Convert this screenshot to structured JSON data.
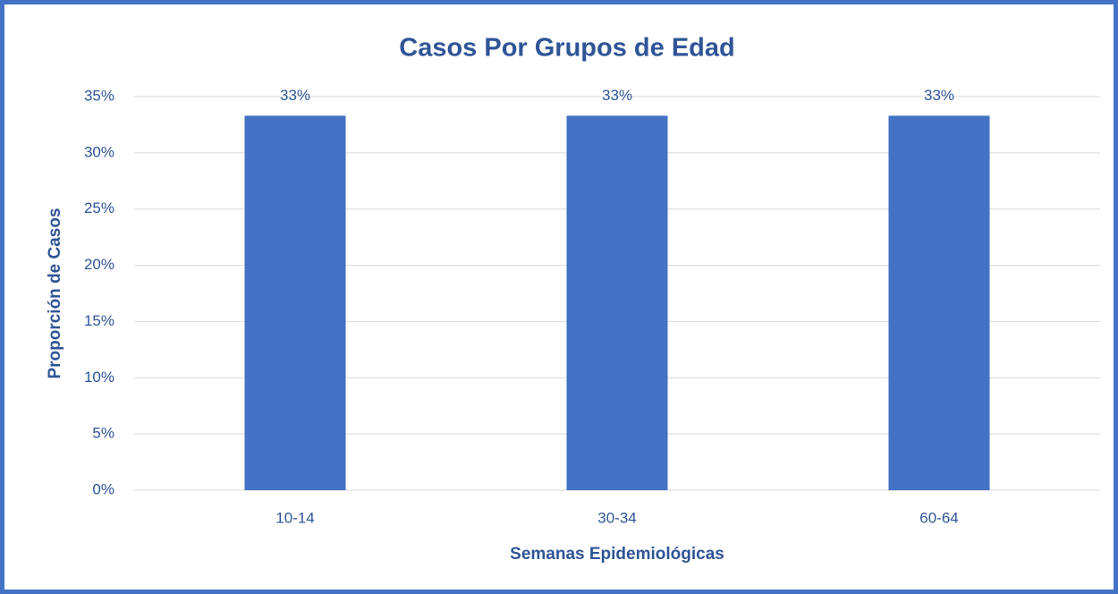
{
  "chart_data": {
    "type": "bar",
    "title": "Casos Por Grupos de Edad",
    "x_label": "Semanas Epidemiológicas",
    "y_label": "Proporción de Casos",
    "categories": [
      "10-14",
      "30-34",
      "60-64"
    ],
    "values": [
      33.3,
      33.3,
      33.3
    ],
    "value_labels": [
      "33%",
      "33%",
      "33%"
    ],
    "color": "#4472c4",
    "ylim": [
      0,
      35
    ],
    "yticks": [
      {
        "value": 0,
        "label": "0%"
      },
      {
        "value": 5,
        "label": "5%"
      },
      {
        "value": 10,
        "label": "10%"
      },
      {
        "value": 15,
        "label": "15%"
      },
      {
        "value": 20,
        "label": "20%"
      },
      {
        "value": 25,
        "label": "25%"
      },
      {
        "value": 30,
        "label": "30%"
      },
      {
        "value": 35,
        "label": "35%"
      }
    ],
    "grid": true
  }
}
